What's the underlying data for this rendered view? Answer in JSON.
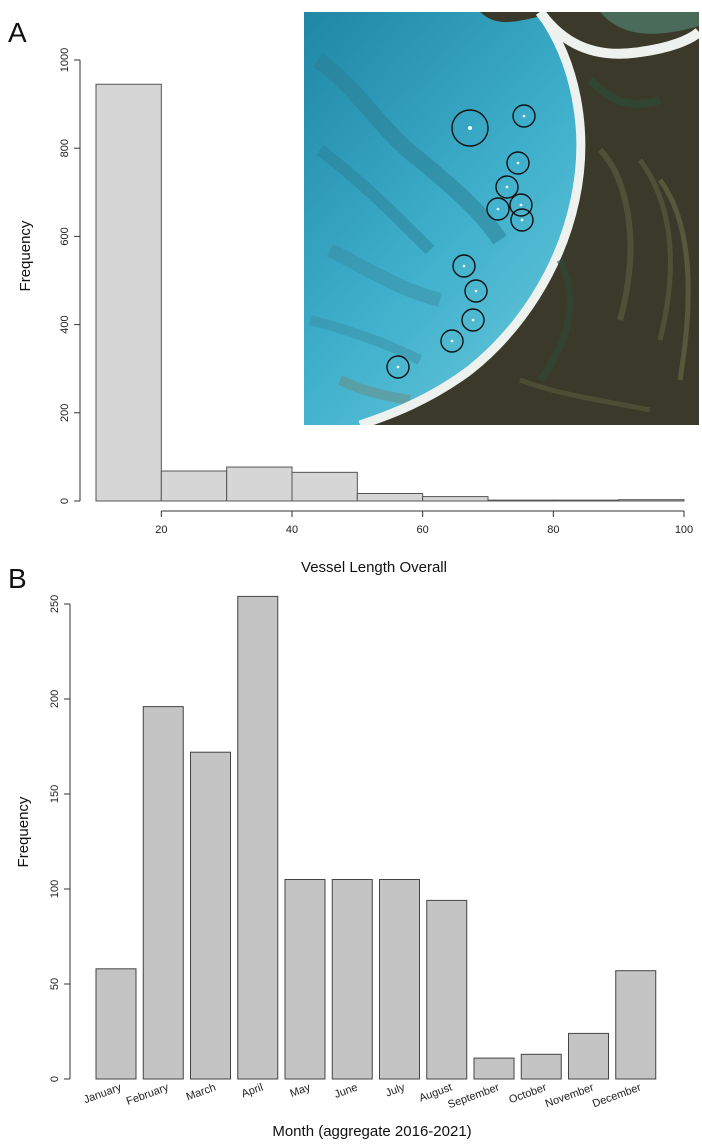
{
  "panels": {
    "a": {
      "label": "A"
    },
    "b": {
      "label": "B"
    }
  },
  "inset_image": {
    "description_icon": "satellite-image-icon",
    "colors": {
      "water_deep": "#2a9bb8",
      "water_shallow": "#5fc4d9",
      "sand": "#e8eee9",
      "land": "#3b3a2a",
      "marker": "#111111"
    },
    "vessel_markers": 12
  },
  "chart_data": [
    {
      "type": "bar",
      "subtype": "histogram",
      "bins": [
        [
          10,
          20
        ],
        [
          20,
          30
        ],
        [
          30,
          40
        ],
        [
          40,
          50
        ],
        [
          50,
          60
        ],
        [
          60,
          70
        ],
        [
          70,
          80
        ],
        [
          80,
          90
        ],
        [
          90,
          100
        ]
      ],
      "values": [
        945,
        68,
        77,
        65,
        17,
        10,
        2,
        2,
        3
      ],
      "xlabel": "Vessel Length Overall",
      "ylabel": "Frequency",
      "xlim": [
        10,
        100
      ],
      "ylim": [
        0,
        1000
      ],
      "xticks": [
        20,
        40,
        60,
        80,
        100
      ],
      "yticks": [
        0,
        200,
        400,
        600,
        800,
        1000
      ],
      "grid": false,
      "colors": {
        "bar": "#d6d6d6",
        "edge": "#555555"
      }
    },
    {
      "type": "bar",
      "categories": [
        "January",
        "February",
        "March",
        "April",
        "May",
        "June",
        "July",
        "August",
        "September",
        "October",
        "November",
        "December"
      ],
      "values": [
        58,
        196,
        172,
        254,
        105,
        105,
        105,
        94,
        11,
        13,
        24,
        57
      ],
      "xlabel": "Month (aggregate 2016-2021)",
      "ylabel": "Frequency",
      "ylim": [
        0,
        250
      ],
      "yticks": [
        0,
        50,
        100,
        150,
        200,
        250
      ],
      "grid": false,
      "colors": {
        "bar": "#c4c4c4",
        "edge": "#444444"
      }
    }
  ]
}
